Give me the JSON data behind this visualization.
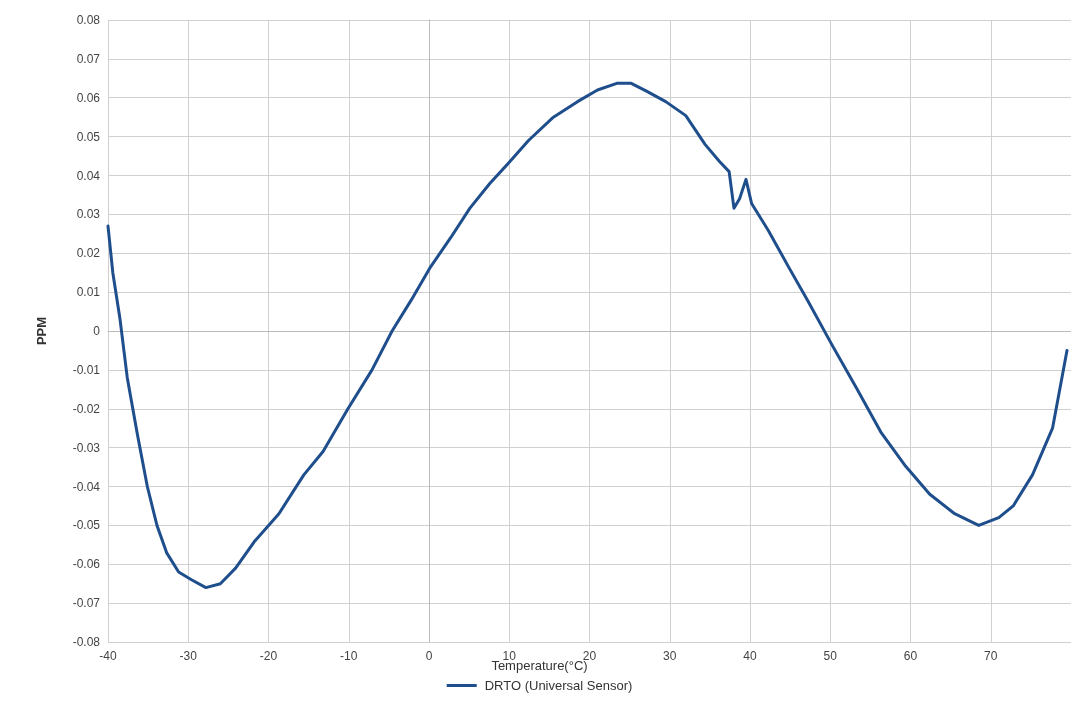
{
  "chart_data": {
    "type": "line",
    "xlabel": "Temperature(°C)",
    "ylabel": "PPM",
    "xlim": [
      -40,
      80
    ],
    "xticks": [
      -40,
      -30,
      -20,
      -10,
      0,
      10,
      20,
      30,
      40,
      50,
      60,
      70
    ],
    "ylim": [
      -0.08,
      0.08
    ],
    "yticks": [
      -0.08,
      -0.07,
      -0.06,
      -0.05,
      -0.04,
      -0.03,
      -0.02,
      -0.01,
      0,
      0.01,
      0.02,
      0.03,
      0.04,
      0.05,
      0.06,
      0.07,
      0.08
    ],
    "grid": true,
    "legend": "bottom",
    "marker": "none",
    "line_style": "solid",
    "series": [
      {
        "name": "DRTO (Universal Sensor)",
        "color": "#1f4e8c",
        "x": [
          -40,
          -39.4,
          -38.5,
          -37.6,
          -36.3,
          -35.1,
          -33.9,
          -32.7,
          -31.2,
          -29.6,
          -27.8,
          -26,
          -24.1,
          -21.7,
          -18.7,
          -15.6,
          -13.2,
          -10.1,
          -7.1,
          -4.6,
          -2.2,
          0.2,
          2.7,
          5.1,
          7.6,
          10,
          12.4,
          15.5,
          18.5,
          21,
          23.4,
          25.2,
          27.1,
          29.5,
          32,
          34.4,
          36.2,
          37.4,
          38,
          38.7,
          39.5,
          40.2,
          42.3,
          44.8,
          47.2,
          50.2,
          53.3,
          56.3,
          59.4,
          62.4,
          65.5,
          68.5,
          71,
          72.8,
          75.2,
          77.7,
          79.5
        ],
        "values": [
          0.027,
          0.015,
          0.003,
          -0.012,
          -0.027,
          -0.04,
          -0.05,
          -0.057,
          -0.062,
          -0.064,
          -0.066,
          -0.065,
          -0.061,
          -0.054,
          -0.047,
          -0.037,
          -0.031,
          -0.02,
          -0.01,
          0,
          0.008,
          0.0165,
          0.024,
          0.0316,
          0.038,
          0.0434,
          0.049,
          0.055,
          0.059,
          0.062,
          0.0637,
          0.0637,
          0.0617,
          0.059,
          0.0554,
          0.048,
          0.0436,
          0.041,
          0.0316,
          0.034,
          0.039,
          0.0328,
          0.0258,
          0.0165,
          0.0078,
          -0.0035,
          -0.0148,
          -0.026,
          -0.0348,
          -0.042,
          -0.047,
          -0.05,
          -0.048,
          -0.045,
          -0.037,
          -0.025,
          -0.005
        ]
      }
    ]
  }
}
